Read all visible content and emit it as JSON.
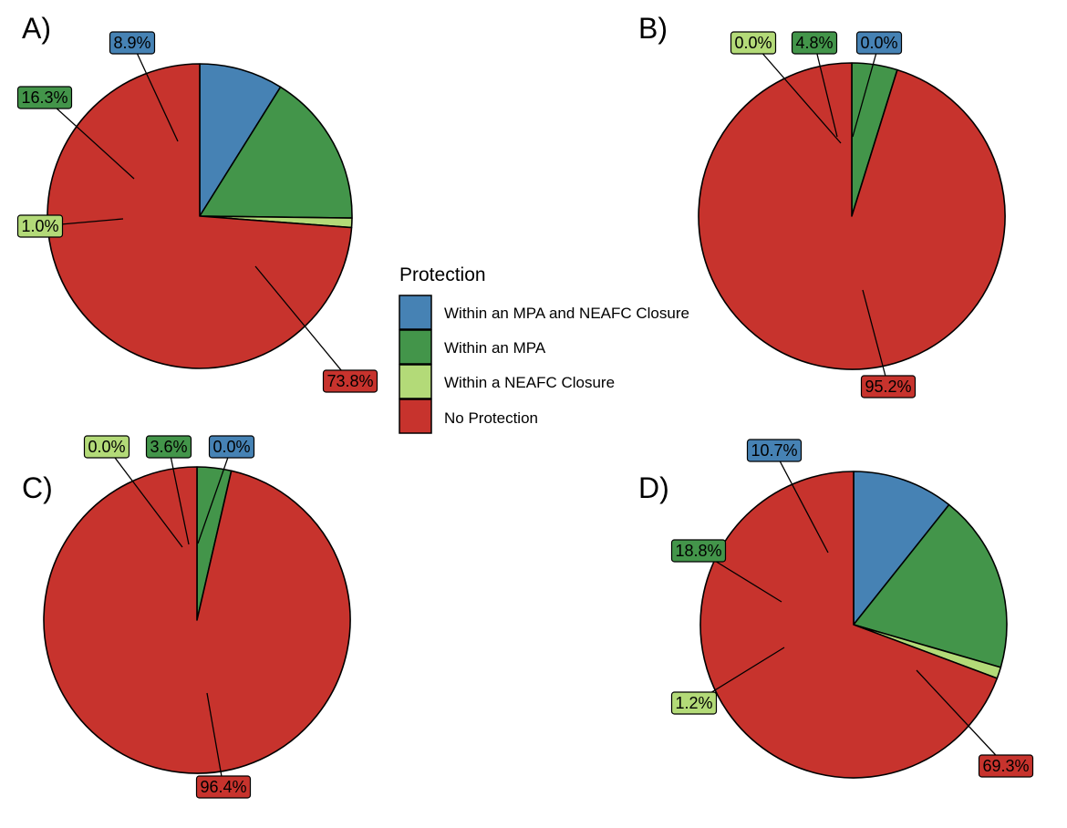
{
  "legend": {
    "title": "Protection",
    "entries": [
      {
        "label": "Within an MPA and NEAFC Closure",
        "color": "#4682B4"
      },
      {
        "label": "Within an MPA",
        "color": "#43954A"
      },
      {
        "label": "Within a NEAFC Closure",
        "color": "#B3DA78"
      },
      {
        "label": "No Protection",
        "color": "#C7332D"
      }
    ]
  },
  "chart_data": [
    {
      "type": "pie",
      "panel": "A)",
      "categories": [
        "Within an MPA and NEAFC Closure",
        "Within an MPA",
        "Within a NEAFC Closure",
        "No Protection"
      ],
      "values": [
        8.9,
        16.3,
        1.0,
        73.8
      ],
      "labels": [
        "8.9%",
        "16.3%",
        "1.0%",
        "73.8%"
      ]
    },
    {
      "type": "pie",
      "panel": "B)",
      "categories": [
        "Within an MPA and NEAFC Closure",
        "Within an MPA",
        "Within a NEAFC Closure",
        "No Protection"
      ],
      "values": [
        0.0,
        4.8,
        0.0,
        95.2
      ],
      "labels": [
        "0.0%",
        "4.8%",
        "0.0%",
        "95.2%"
      ]
    },
    {
      "type": "pie",
      "panel": "C)",
      "categories": [
        "Within an MPA and NEAFC Closure",
        "Within an MPA",
        "Within a NEAFC Closure",
        "No Protection"
      ],
      "values": [
        0.0,
        3.6,
        0.0,
        96.4
      ],
      "labels": [
        "0.0%",
        "3.6%",
        "0.0%",
        "96.4%"
      ]
    },
    {
      "type": "pie",
      "panel": "D)",
      "categories": [
        "Within an MPA and NEAFC Closure",
        "Within an MPA",
        "Within a NEAFC Closure",
        "No Protection"
      ],
      "values": [
        10.7,
        18.8,
        1.2,
        69.3
      ],
      "labels": [
        "10.7%",
        "18.8%",
        "1.2%",
        "69.3%"
      ]
    }
  ]
}
